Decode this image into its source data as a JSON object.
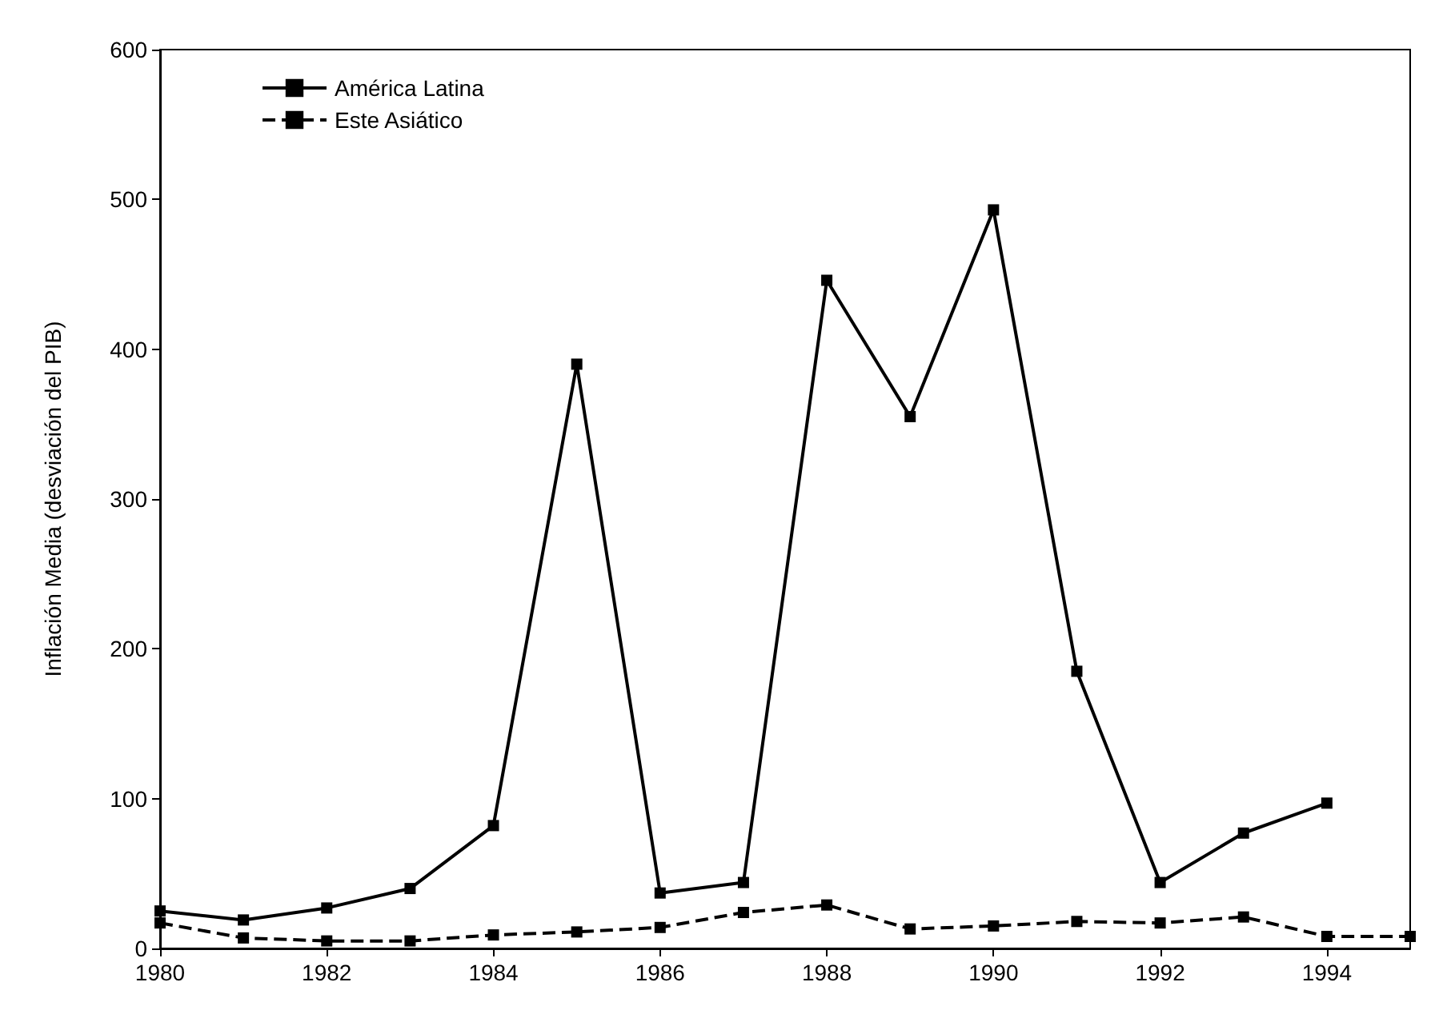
{
  "chart_data": {
    "type": "line",
    "ylabel": "Inflación Media (desviación del PIB)",
    "x": [
      1980,
      1981,
      1982,
      1983,
      1984,
      1985,
      1986,
      1987,
      1988,
      1989,
      1990,
      1991,
      1992,
      1993,
      1994,
      1995
    ],
    "series": [
      {
        "name": "América Latina",
        "color": "#000000",
        "line_style": "solid",
        "values": [
          25,
          19,
          27,
          40,
          82,
          390,
          37,
          44,
          446,
          355,
          493,
          185,
          44,
          77,
          97,
          null
        ]
      },
      {
        "name": "Este Asiático",
        "color": "#000000",
        "line_style": "dashed",
        "values": [
          17,
          7,
          5,
          5,
          9,
          11,
          14,
          24,
          29,
          13,
          15,
          18,
          17,
          21,
          8,
          8
        ]
      }
    ],
    "xlim": [
      1980,
      1995
    ],
    "xticks": [
      1980,
      1982,
      1984,
      1986,
      1988,
      1990,
      1992,
      1994
    ],
    "ylim": [
      0,
      600
    ],
    "yticks": [
      0,
      100,
      200,
      300,
      400,
      500,
      600
    ],
    "grid": false,
    "legend": "top left",
    "marker": "square"
  }
}
